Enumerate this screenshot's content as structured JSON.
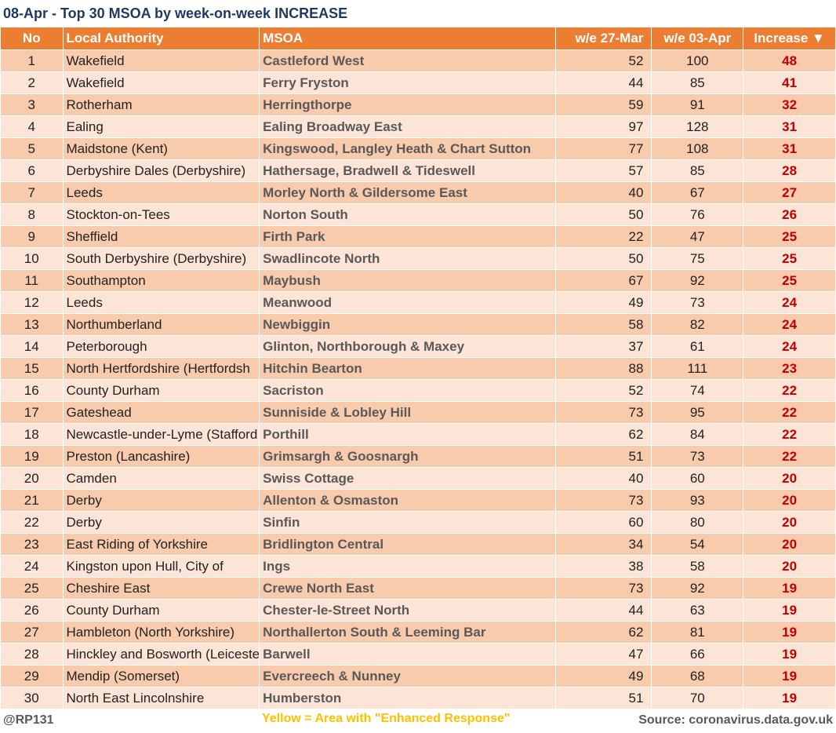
{
  "title": "08-Apr - Top 30 MSOA by week-on-week INCREASE",
  "headers": {
    "no": "No",
    "la": "Local Authority",
    "msoa": "MSOA",
    "prev": "w/e 27-Mar",
    "curr": "w/e 03-Apr",
    "inc": "Increase ▼"
  },
  "rows": [
    {
      "no": "1",
      "la": "Wakefield",
      "msoa": "Castleford West",
      "prev": "52",
      "curr": "100",
      "inc": "48"
    },
    {
      "no": "2",
      "la": "Wakefield",
      "msoa": "Ferry Fryston",
      "prev": "44",
      "curr": "85",
      "inc": "41"
    },
    {
      "no": "3",
      "la": "Rotherham",
      "msoa": "Herringthorpe",
      "prev": "59",
      "curr": "91",
      "inc": "32"
    },
    {
      "no": "4",
      "la": "Ealing",
      "msoa": "Ealing Broadway East",
      "prev": "97",
      "curr": "128",
      "inc": "31"
    },
    {
      "no": "5",
      "la": "Maidstone (Kent)",
      "msoa": "Kingswood, Langley Heath & Chart Sutton",
      "prev": "77",
      "curr": "108",
      "inc": "31"
    },
    {
      "no": "6",
      "la": "Derbyshire Dales (Derbyshire)",
      "msoa": "Hathersage, Bradwell & Tideswell",
      "prev": "57",
      "curr": "85",
      "inc": "28"
    },
    {
      "no": "7",
      "la": "Leeds",
      "msoa": "Morley North & Gildersome East",
      "prev": "40",
      "curr": "67",
      "inc": "27"
    },
    {
      "no": "8",
      "la": "Stockton-on-Tees",
      "msoa": "Norton South",
      "prev": "50",
      "curr": "76",
      "inc": "26"
    },
    {
      "no": "9",
      "la": "Sheffield",
      "msoa": "Firth Park",
      "prev": "22",
      "curr": "47",
      "inc": "25"
    },
    {
      "no": "10",
      "la": "South Derbyshire (Derbyshire)",
      "msoa": "Swadlincote North",
      "prev": "50",
      "curr": "75",
      "inc": "25"
    },
    {
      "no": "11",
      "la": "Southampton",
      "msoa": "Maybush",
      "prev": "67",
      "curr": "92",
      "inc": "25"
    },
    {
      "no": "12",
      "la": "Leeds",
      "msoa": "Meanwood",
      "prev": "49",
      "curr": "73",
      "inc": "24"
    },
    {
      "no": "13",
      "la": "Northumberland",
      "msoa": "Newbiggin",
      "prev": "58",
      "curr": "82",
      "inc": "24"
    },
    {
      "no": "14",
      "la": "Peterborough",
      "msoa": "Glinton, Northborough & Maxey",
      "prev": "37",
      "curr": "61",
      "inc": "24"
    },
    {
      "no": "15",
      "la": "North Hertfordshire (Hertfordsh",
      "msoa": "Hitchin Bearton",
      "prev": "88",
      "curr": "111",
      "inc": "23"
    },
    {
      "no": "16",
      "la": "County Durham",
      "msoa": "Sacriston",
      "prev": "52",
      "curr": "74",
      "inc": "22"
    },
    {
      "no": "17",
      "la": "Gateshead",
      "msoa": "Sunniside & Lobley Hill",
      "prev": "73",
      "curr": "95",
      "inc": "22"
    },
    {
      "no": "18",
      "la": "Newcastle-under-Lyme (Stafford",
      "msoa": "Porthill",
      "prev": "62",
      "curr": "84",
      "inc": "22"
    },
    {
      "no": "19",
      "la": "Preston (Lancashire)",
      "msoa": "Grimsargh & Goosnargh",
      "prev": "51",
      "curr": "73",
      "inc": "22"
    },
    {
      "no": "20",
      "la": "Camden",
      "msoa": "Swiss Cottage",
      "prev": "40",
      "curr": "60",
      "inc": "20"
    },
    {
      "no": "21",
      "la": "Derby",
      "msoa": "Allenton & Osmaston",
      "prev": "73",
      "curr": "93",
      "inc": "20"
    },
    {
      "no": "22",
      "la": "Derby",
      "msoa": "Sinfin",
      "prev": "60",
      "curr": "80",
      "inc": "20"
    },
    {
      "no": "23",
      "la": "East Riding of Yorkshire",
      "msoa": "Bridlington Central",
      "prev": "34",
      "curr": "54",
      "inc": "20"
    },
    {
      "no": "24",
      "la": "Kingston upon Hull, City of",
      "msoa": "Ings",
      "prev": "38",
      "curr": "58",
      "inc": "20"
    },
    {
      "no": "25",
      "la": "Cheshire East",
      "msoa": "Crewe North East",
      "prev": "73",
      "curr": "92",
      "inc": "19"
    },
    {
      "no": "26",
      "la": "County Durham",
      "msoa": "Chester-le-Street North",
      "prev": "44",
      "curr": "63",
      "inc": "19"
    },
    {
      "no": "27",
      "la": "Hambleton (North Yorkshire)",
      "msoa": "Northallerton South & Leeming Bar",
      "prev": "62",
      "curr": "81",
      "inc": "19"
    },
    {
      "no": "28",
      "la": "Hinckley and Bosworth (Leiceste",
      "msoa": "Barwell",
      "prev": "47",
      "curr": "66",
      "inc": "19"
    },
    {
      "no": "29",
      "la": "Mendip (Somerset)",
      "msoa": "Evercreech & Nunney",
      "prev": "49",
      "curr": "68",
      "inc": "19"
    },
    {
      "no": "30",
      "la": "North East Lincolnshire",
      "msoa": "Humberston",
      "prev": "51",
      "curr": "70",
      "inc": "19"
    }
  ],
  "footer": {
    "handle": "@RP131",
    "legend": "Yellow = Area with \"Enhanced Response\"",
    "source": "Source: coronavirus.data.gov.uk"
  }
}
